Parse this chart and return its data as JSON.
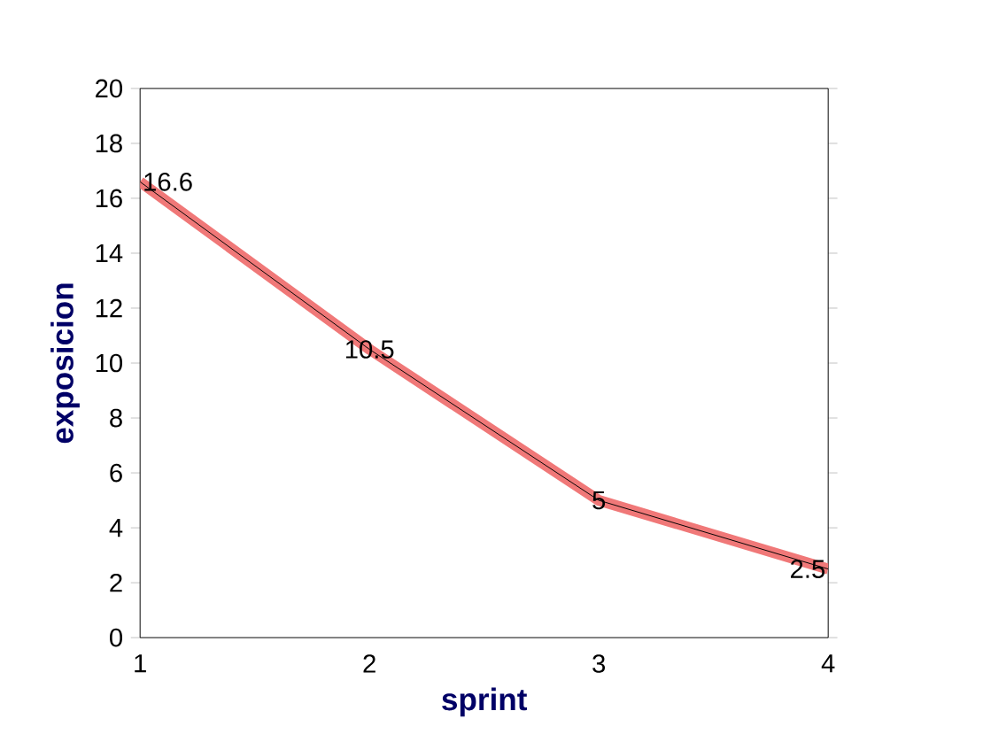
{
  "chart_data": {
    "type": "line",
    "xlabel": "sprint",
    "ylabel": "exposicion",
    "x": [
      1,
      2,
      3,
      4
    ],
    "series": [
      {
        "color": "#f07878",
        "values": [
          16.6,
          10.5,
          5,
          2.5
        ]
      }
    ],
    "xlim": [
      1,
      4
    ],
    "xticks": [
      1,
      2,
      3,
      4
    ],
    "ylim": [
      0,
      20
    ],
    "yticks": [
      0,
      2,
      4,
      6,
      8,
      10,
      12,
      14,
      16,
      18,
      20
    ],
    "data_labels": true,
    "marker": "none",
    "line_style": "solid"
  }
}
